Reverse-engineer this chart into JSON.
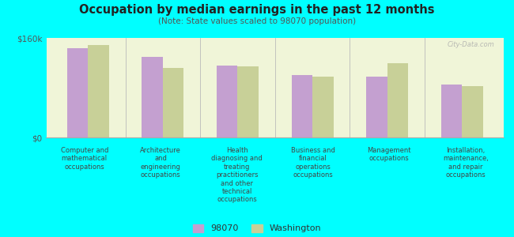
{
  "title": "Occupation by median earnings in the past 12 months",
  "subtitle": "(Note: State values scaled to 98070 population)",
  "background_color": "#00FFFF",
  "plot_bg_top": "#e8edc8",
  "plot_bg_bottom": "#f5f8e8",
  "categories": [
    "Computer and\nmathematical\noccupations",
    "Architecture\nand\nengineering\noccupations",
    "Health\ndiagnosing and\ntreating\npractitioners\nand other\ntechnical\noccupations",
    "Business and\nfinancial\noperations\noccupations",
    "Management\noccupations",
    "Installation,\nmaintenance,\nand repair\noccupations"
  ],
  "values_98070": [
    143000,
    130000,
    115000,
    100000,
    98000,
    85000
  ],
  "values_washington": [
    148000,
    112000,
    114000,
    98000,
    120000,
    82000
  ],
  "color_98070": "#c4a0d0",
  "color_washington": "#c8d098",
  "ylim": [
    0,
    160000
  ],
  "yticks": [
    0,
    160000
  ],
  "ytick_labels": [
    "$0",
    "$160k"
  ],
  "legend_98070": "98070",
  "legend_washington": "Washington",
  "watermark": "City-Data.com",
  "bar_width": 0.28
}
